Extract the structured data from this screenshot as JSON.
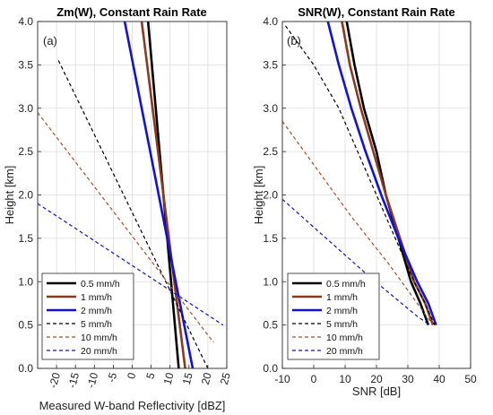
{
  "chart_data": [
    {
      "type": "line",
      "panel_label": "(a)",
      "title": "Zm(W), Constant Rain Rate",
      "xlabel": "Measured W-band Reflectivity [dBZ]",
      "ylabel": "Height [km]",
      "xlim": [
        -25,
        25
      ],
      "ylim": [
        0,
        4
      ],
      "xticks": [
        "-20",
        "-15",
        "-10",
        "-5",
        "0",
        "5",
        "10",
        "15",
        "20",
        "25"
      ],
      "xticks_rotated": true,
      "yticks": [
        "0.0",
        "0.5",
        "1.0",
        "1.5",
        "2.0",
        "2.5",
        "3.0",
        "3.5",
        "4.0"
      ],
      "grid": true,
      "legend_position": "bottom-left",
      "series": [
        {
          "name": "0.5 mm/h",
          "color": "#000000",
          "style": "solid",
          "x": [
            4.2,
            12.3
          ],
          "y": [
            4.0,
            0.0
          ]
        },
        {
          "name": "1 mm/h",
          "color": "#8B3A1E",
          "style": "solid",
          "x": [
            2.5,
            14.0
          ],
          "y": [
            4.0,
            0.0
          ]
        },
        {
          "name": "2 mm/h",
          "color": "#1010E0",
          "style": "solid",
          "x": [
            -2.0,
            16.0
          ],
          "y": [
            4.0,
            0.0
          ]
        },
        {
          "name": "5 mm/h",
          "color": "#000000",
          "style": "dashed",
          "x": [
            -19.5,
            20.0
          ],
          "y": [
            3.55,
            0.0
          ]
        },
        {
          "name": "10 mm/h",
          "color": "#A0522D",
          "style": "dashed",
          "x": [
            -25.0,
            21.5
          ],
          "y": [
            2.95,
            0.3
          ]
        },
        {
          "name": "20 mm/h",
          "color": "#1010C0",
          "style": "dashed",
          "x": [
            -25.0,
            24.0
          ],
          "y": [
            1.9,
            0.5
          ]
        }
      ]
    },
    {
      "type": "line",
      "panel_label": "(b)",
      "title": "SNR(W), Constant Rain Rate",
      "xlabel": "SNR [dB]",
      "ylabel": "Height [km]",
      "xlim": [
        -10,
        50
      ],
      "ylim": [
        0,
        4
      ],
      "xticks": [
        "-10",
        "0",
        "10",
        "20",
        "30",
        "40",
        "50"
      ],
      "xticks_rotated": false,
      "yticks": [
        "0.0",
        "0.5",
        "1.0",
        "1.5",
        "2.0",
        "2.5",
        "3.0",
        "3.5",
        "4.0"
      ],
      "grid": true,
      "legend_position": "bottom-left",
      "series": [
        {
          "name": "0.5 mm/h",
          "color": "#000000",
          "style": "solid",
          "x": [
            10.5,
            13,
            16,
            20,
            23,
            27,
            31,
            34,
            36.5
          ],
          "y": [
            4.0,
            3.5,
            3.0,
            2.5,
            2.0,
            1.5,
            1.0,
            0.75,
            0.5
          ]
        },
        {
          "name": "1 mm/h",
          "color": "#8B3A1E",
          "style": "solid",
          "x": [
            9,
            11.5,
            15,
            19,
            23,
            27.5,
            32,
            35.5,
            38
          ],
          "y": [
            4.0,
            3.5,
            3.0,
            2.5,
            2.0,
            1.5,
            1.0,
            0.75,
            0.5
          ]
        },
        {
          "name": "2 mm/h",
          "color": "#1010E0",
          "style": "solid",
          "x": [
            4.5,
            8,
            12,
            16.5,
            21.5,
            27,
            33,
            36.5,
            39
          ],
          "y": [
            4.0,
            3.5,
            3.0,
            2.5,
            2.0,
            1.5,
            1.0,
            0.75,
            0.5
          ]
        },
        {
          "name": "5 mm/h",
          "color": "#000000",
          "style": "dashed",
          "x": [
            -9,
            0,
            8,
            14,
            20,
            26,
            32,
            35.5,
            38.5
          ],
          "y": [
            3.95,
            3.5,
            3.0,
            2.5,
            2.0,
            1.5,
            1.0,
            0.75,
            0.5
          ]
        },
        {
          "name": "10 mm/h",
          "color": "#A0522D",
          "style": "dashed",
          "x": [
            -10,
            1,
            12,
            24,
            35,
            38
          ],
          "y": [
            2.85,
            2.3,
            1.75,
            1.2,
            0.65,
            0.5
          ]
        },
        {
          "name": "20 mm/h",
          "color": "#1010C0",
          "style": "dashed",
          "x": [
            -10,
            4,
            18,
            33,
            37
          ],
          "y": [
            1.95,
            1.5,
            1.05,
            0.6,
            0.5
          ]
        }
      ]
    }
  ]
}
